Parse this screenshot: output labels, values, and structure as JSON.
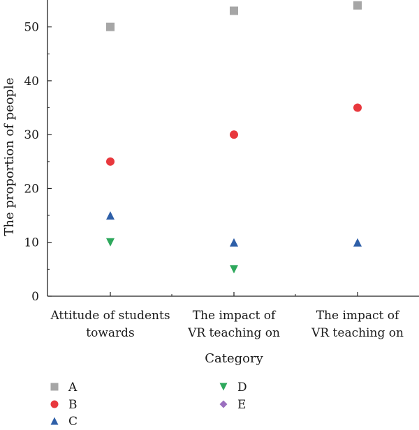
{
  "chart_data": {
    "type": "scatter",
    "title": "",
    "xlabel": "Category",
    "ylabel": "The proportion of people",
    "ylim": [
      0,
      55
    ],
    "yticks": [
      0,
      10,
      20,
      30,
      40,
      50
    ],
    "grid": false,
    "legend_position": "bottom",
    "categories": [
      [
        "Attitude of students",
        "towards"
      ],
      [
        "The impact of",
        "VR teaching on"
      ],
      [
        "The impact of",
        "VR teaching on"
      ]
    ],
    "series": [
      {
        "name": "A",
        "marker": "square",
        "color": "#a6a6a6",
        "values": [
          50,
          53,
          54
        ]
      },
      {
        "name": "B",
        "marker": "circle",
        "color": "#e8383d",
        "values": [
          25,
          30,
          35
        ]
      },
      {
        "name": "C",
        "marker": "triangle-up",
        "color": "#2e5fa8",
        "values": [
          15,
          10,
          10
        ]
      },
      {
        "name": "D",
        "marker": "triangle-down",
        "color": "#2ea85c",
        "values": [
          10,
          5,
          null
        ]
      },
      {
        "name": "E",
        "marker": "diamond",
        "color": "#9b6fbf",
        "values": [
          null,
          null,
          null
        ]
      }
    ]
  }
}
